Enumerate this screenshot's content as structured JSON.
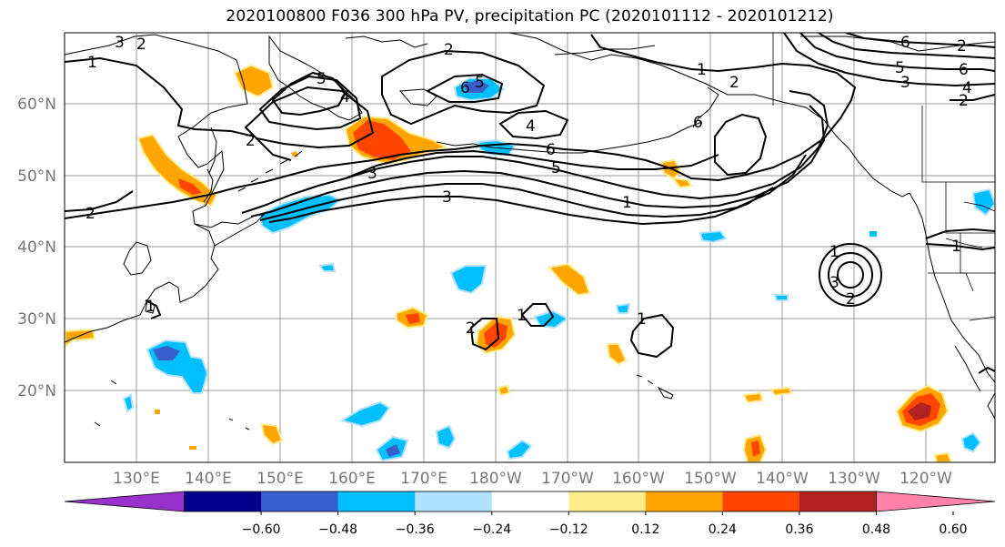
{
  "title": "2020100800 F036 300 hPa PV, precipitation PC (2020101112 - 2020101212)",
  "map": {
    "lat_labels": [
      "60°N",
      "50°N",
      "40°N",
      "30°N",
      "20°N"
    ],
    "lon_labels": [
      "130°E",
      "140°E",
      "150°E",
      "160°E",
      "170°E",
      "180°W",
      "170°W",
      "160°W",
      "150°W",
      "140°W",
      "130°W",
      "120°W"
    ],
    "ocean_color": "#ffffff",
    "gridline_color": "#9a9a9a"
  },
  "colorbar": {
    "colors": [
      "#9932cc",
      "#00008b",
      "#3a5fcd",
      "#00bfff",
      "#b0e2ff",
      "#ffffff",
      "#ffec8b",
      "#ffa500",
      "#ff4500",
      "#b22222",
      "#ff82ab"
    ],
    "extend_low_color": "#9932cc",
    "extend_high_color": "#ff82ab",
    "tick_labels": [
      "−0.60",
      "−0.48",
      "−0.36",
      "−0.24",
      "−0.12",
      "0.12",
      "0.24",
      "0.36",
      "0.48",
      "0.60"
    ]
  },
  "contour_labels": [
    "2",
    "3",
    "2",
    "1",
    "5",
    "4",
    "2",
    "2",
    "6",
    "5",
    "1",
    "2",
    "6",
    "4",
    "6",
    "5",
    "3",
    "1",
    "3",
    "2",
    "1",
    "1",
    "2",
    "3",
    "2",
    "1",
    "1",
    "1",
    "1",
    "6",
    "6",
    "5",
    "3",
    "2",
    "4",
    "2",
    "1"
  ]
}
